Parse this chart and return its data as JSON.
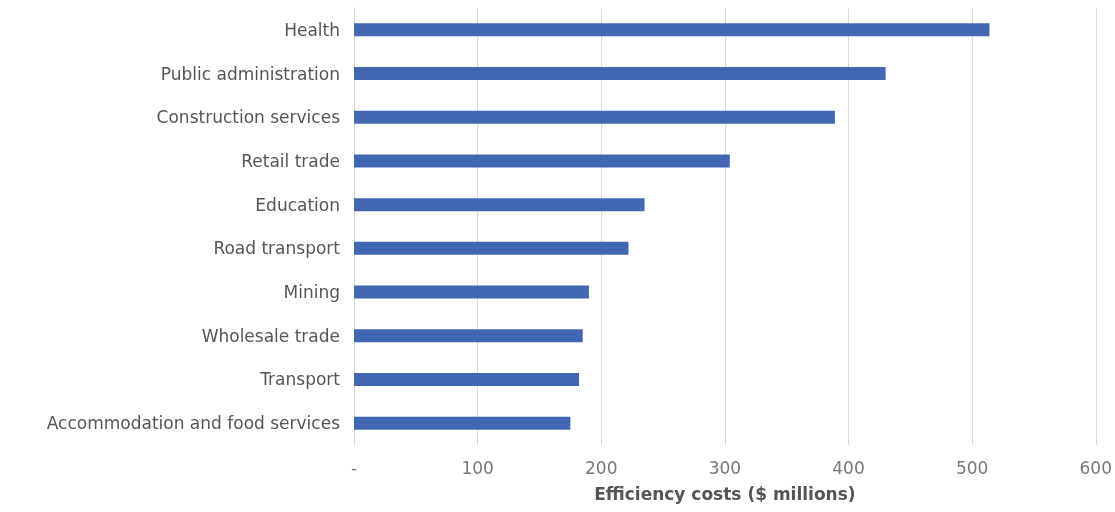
{
  "chart_data": {
    "type": "bar",
    "orientation": "horizontal",
    "xlabel": "Efficiency costs ($ millions)",
    "categories": [
      "Health",
      "Public administration",
      "Construction services",
      "Retail trade",
      "Education",
      "Road transport",
      "Mining",
      "Wholesale trade",
      "Transport",
      "Accommodation and food services"
    ],
    "values": [
      514,
      430,
      389,
      304,
      235,
      222,
      190,
      185,
      182,
      175
    ],
    "color": "#4267b2",
    "xlim": [
      0,
      600
    ],
    "xticks": [
      {
        "value": 0,
        "label": "-"
      },
      100,
      200,
      300,
      400,
      500,
      600
    ],
    "grid": "x"
  }
}
